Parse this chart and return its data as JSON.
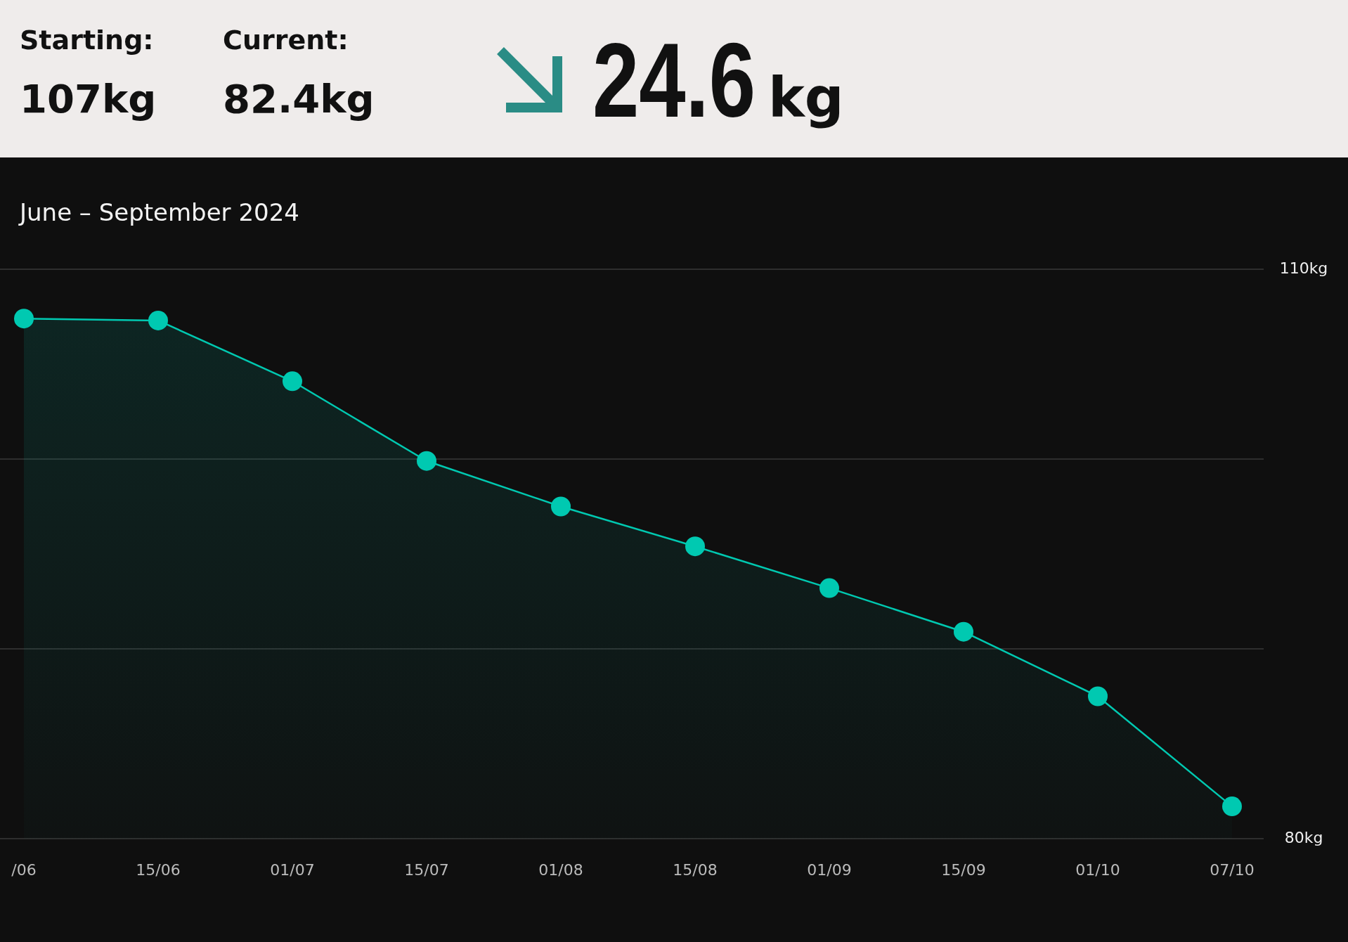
{
  "chart_data": {
    "type": "area",
    "title": "June – September 2024",
    "annotations": [
      "Starting:",
      "107kg",
      "Current:",
      "82.4kg",
      "24.6",
      "kg"
    ],
    "categories": [
      "/06",
      "15/06",
      "01/07",
      "15/07",
      "01/08",
      "15/08",
      "01/09",
      "15/09",
      "01/10",
      "07/10"
    ],
    "series": [
      {
        "color": "#00c9b1",
        "values": [
          107.4,
          107.3,
          104.1,
          99.9,
          97.5,
          95.4,
          93.2,
          90.9,
          87.5,
          81.7
        ]
      }
    ],
    "ylim": [
      80,
      110
    ],
    "yticks": [
      {
        "value": 80,
        "label": "80kg"
      },
      {
        "value": 90,
        "label": null
      },
      {
        "value": 100,
        "label": null
      },
      {
        "value": 110,
        "label": "110kg"
      }
    ],
    "grid": "y",
    "marker": "circle",
    "line_style": "solid"
  }
}
